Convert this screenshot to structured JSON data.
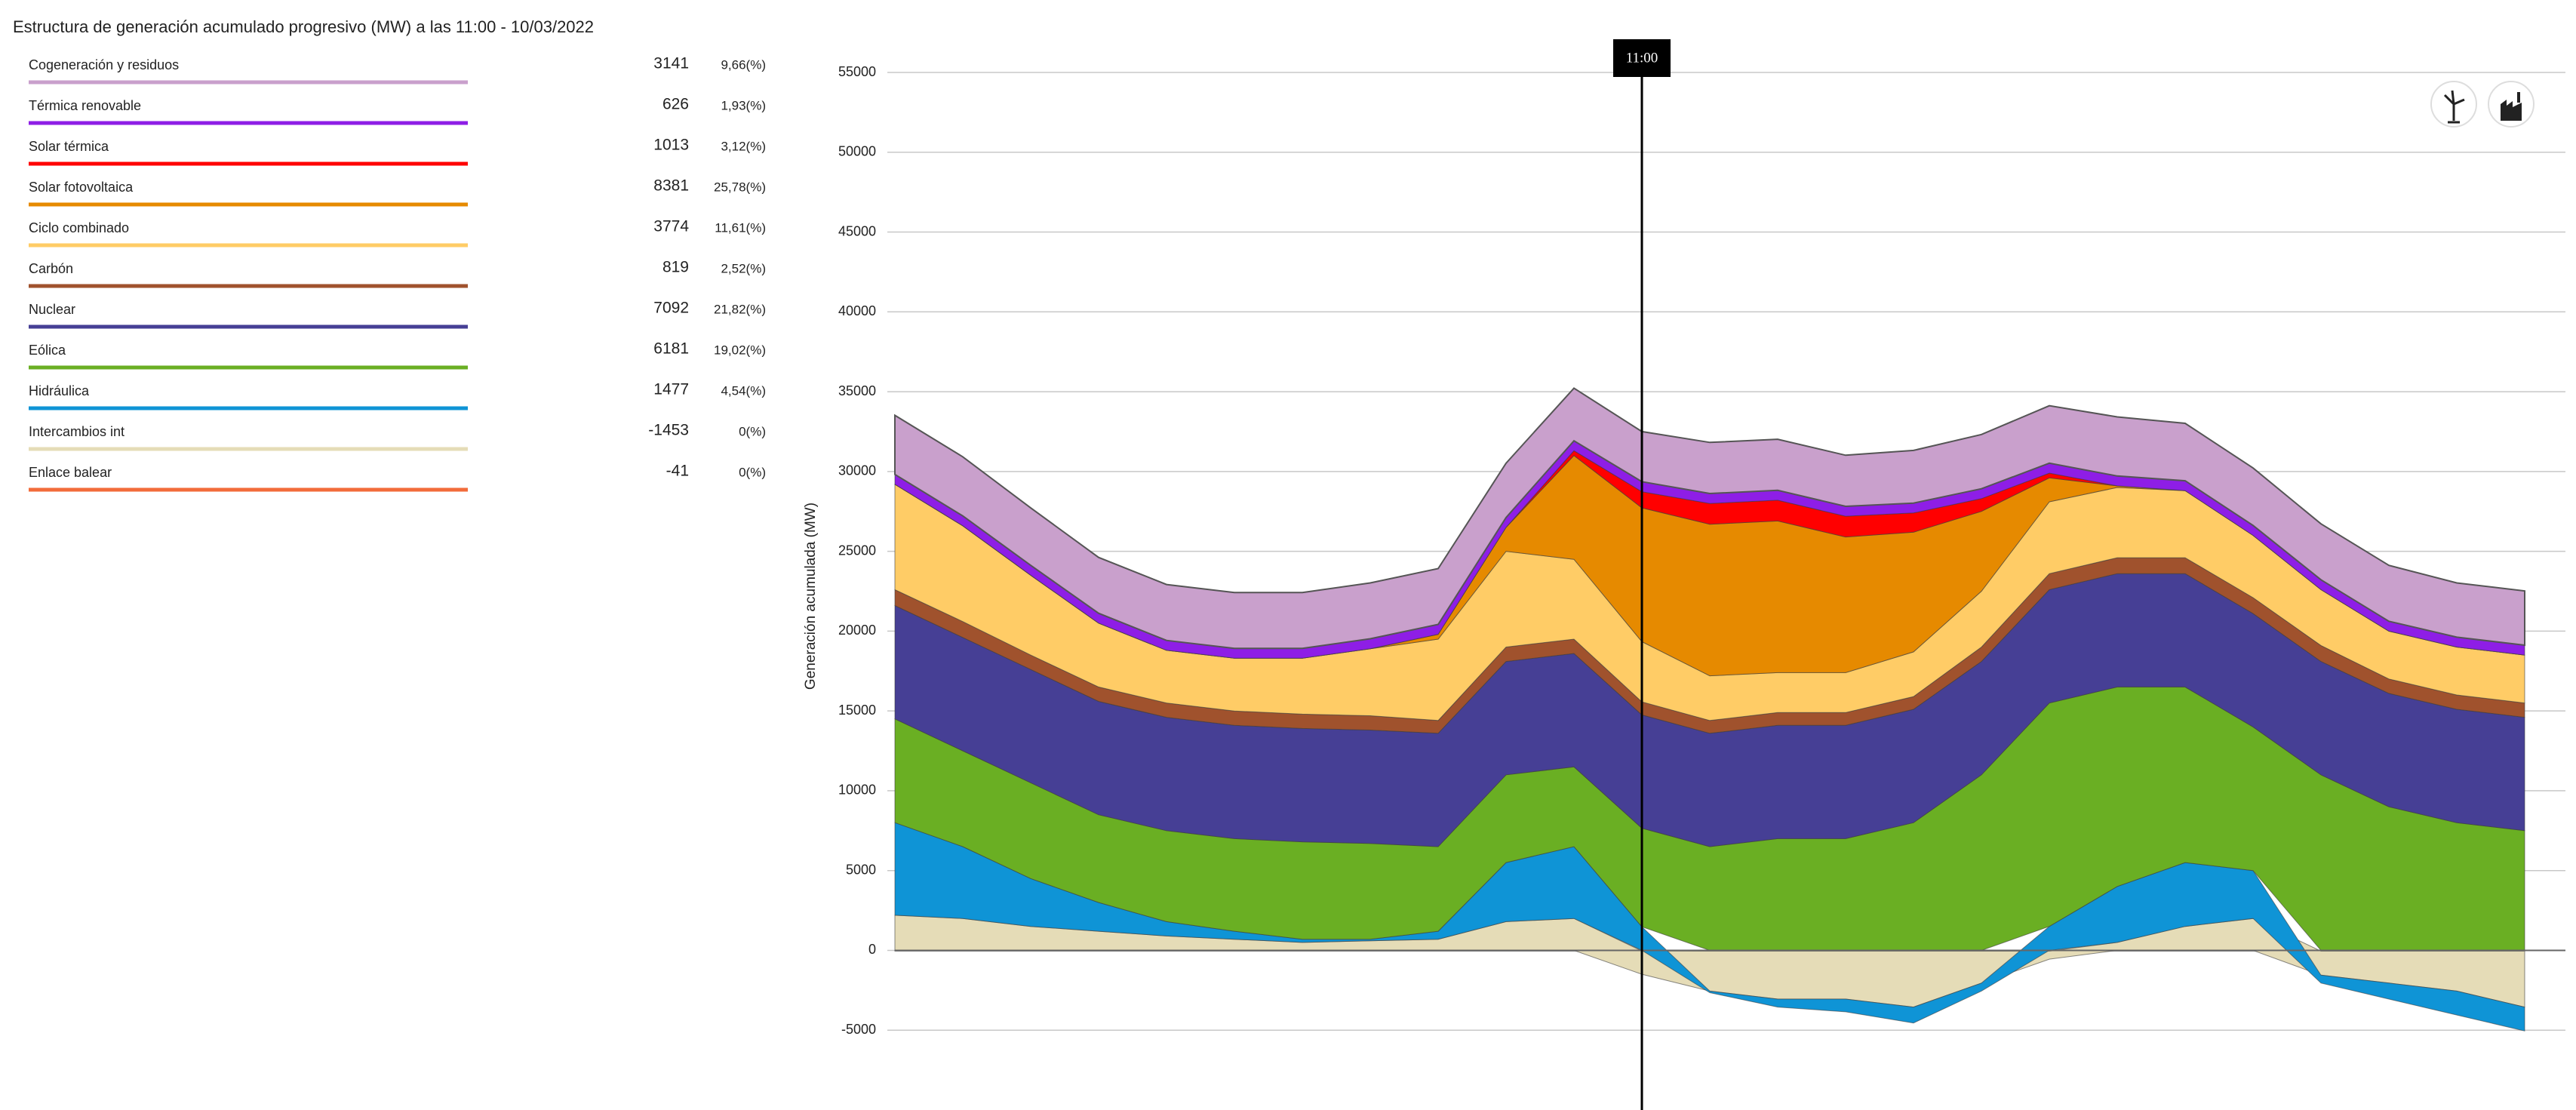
{
  "chart_data": {
    "type": "stacked-area",
    "title": "Estructura de generación acumulado progresivo (MW) a las 11:00 - 10/03/2022",
    "y_label": "Generación acumulada (MW)",
    "categories": [
      null,
      null,
      null,
      null,
      null,
      null,
      null,
      null,
      null,
      null,
      null,
      "11:00",
      null,
      null,
      null,
      null,
      null,
      null,
      null,
      null,
      null,
      null,
      null,
      null,
      null
    ],
    "ylim": [
      -10000,
      55000
    ],
    "yticks": [
      -5000,
      0,
      5000,
      10000,
      15000,
      20000,
      25000,
      30000,
      35000,
      40000,
      45000,
      50000,
      55000
    ],
    "grid": true,
    "series": [
      {
        "name": "Cogeneración y residuos",
        "color": "#c9a0cc",
        "current": 3141,
        "share": {
          "value": 9.66,
          "label": "9,66(%)"
        },
        "values": [
          3700,
          3700,
          3600,
          3500,
          3500,
          3500,
          3500,
          3500,
          3500,
          3400,
          3300,
          3141,
          3200,
          3200,
          3200,
          3300,
          3400,
          3600,
          3700,
          3600,
          3600,
          3500,
          3500,
          3400,
          3400
        ]
      },
      {
        "name": "Térmica renovable",
        "color": "#8e1ee6",
        "current": 626,
        "share": {
          "value": 1.93,
          "label": "1,93(%)"
        },
        "values": [
          620,
          620,
          620,
          620,
          620,
          620,
          620,
          620,
          620,
          620,
          620,
          626,
          620,
          620,
          620,
          620,
          620,
          620,
          620,
          620,
          620,
          620,
          620,
          620,
          620
        ]
      },
      {
        "name": "Solar térmica",
        "color": "#ff0000",
        "current": 1013,
        "share": {
          "value": 3.12,
          "label": "3,12(%)"
        },
        "values": [
          0,
          0,
          0,
          0,
          0,
          0,
          0,
          0,
          0,
          0,
          300,
          1013,
          1300,
          1300,
          1300,
          1200,
          800,
          300,
          0,
          0,
          0,
          0,
          0,
          0,
          0
        ]
      },
      {
        "name": "Solar fotovoltaica",
        "color": "#e68a00",
        "current": 8381,
        "share": {
          "value": 25.78,
          "label": "25,78(%)"
        },
        "values": [
          0,
          0,
          0,
          0,
          0,
          0,
          0,
          0,
          300,
          1500,
          6500,
          8381,
          9500,
          9500,
          8500,
          7500,
          5000,
          1500,
          100,
          0,
          0,
          0,
          0,
          0,
          0
        ]
      },
      {
        "name": "Ciclo combinado",
        "color": "#ffcc66",
        "current": 3774,
        "share": {
          "value": 11.61,
          "label": "11,61(%)"
        },
        "values": [
          6600,
          6000,
          5000,
          4000,
          3300,
          3300,
          3500,
          4200,
          5100,
          6000,
          5000,
          3774,
          2800,
          2500,
          2500,
          2800,
          3500,
          4500,
          4400,
          4200,
          3900,
          3500,
          3000,
          3000,
          3000
        ]
      },
      {
        "name": "Carbón",
        "color": "#a0522d",
        "current": 819,
        "share": {
          "value": 2.52,
          "label": "2,52(%)"
        },
        "values": [
          1000,
          1000,
          900,
          900,
          900,
          900,
          900,
          900,
          800,
          900,
          900,
          819,
          800,
          800,
          800,
          800,
          900,
          1000,
          1000,
          1000,
          1000,
          1000,
          900,
          900,
          900
        ]
      },
      {
        "name": "Nuclear",
        "color": "#463f95",
        "current": 7092,
        "share": {
          "value": 21.82,
          "label": "21,82(%)"
        },
        "values": [
          7100,
          7100,
          7100,
          7100,
          7100,
          7100,
          7100,
          7100,
          7100,
          7100,
          7100,
          7092,
          7100,
          7100,
          7100,
          7100,
          7100,
          7100,
          7100,
          7100,
          7100,
          7100,
          7100,
          7100,
          7100
        ]
      },
      {
        "name": "Eólica",
        "color": "#6aaf23",
        "current": 6181,
        "share": {
          "value": 19.02,
          "label": "19,02(%)"
        },
        "values": [
          6500,
          6000,
          6000,
          5500,
          5700,
          5800,
          6100,
          6000,
          5300,
          5500,
          5000,
          6181,
          6500,
          7000,
          7000,
          8000,
          11000,
          14000,
          12500,
          11000,
          9000,
          11000,
          9000,
          8000,
          7500
        ]
      },
      {
        "name": "Hidráulica",
        "color": "#0f94d6",
        "current": 1477,
        "share": {
          "value": 4.54,
          "label": "4,54(%)"
        },
        "values": [
          5800,
          4500,
          3000,
          1800,
          900,
          500,
          200,
          100,
          500,
          3700,
          4500,
          1477,
          -100,
          -500,
          -800,
          -1000,
          -500,
          1500,
          3500,
          4000,
          3000,
          -500,
          -1000,
          -1500,
          -1500
        ]
      },
      {
        "name": "Intercambios int",
        "color": "#e5dcb7",
        "current": -1453,
        "share": {
          "value": 0,
          "label": "0(%)"
        },
        "values": [
          2200,
          2000,
          1500,
          1200,
          900,
          700,
          500,
          600,
          700,
          1800,
          2000,
          -1453,
          -2500,
          -3000,
          -3000,
          -3500,
          -2000,
          -500,
          500,
          1500,
          2000,
          -1500,
          -2000,
          -2500,
          -3500
        ]
      },
      {
        "name": "Enlace balear",
        "color": "#f26b3a",
        "current": -41,
        "share": {
          "value": 0,
          "label": "0(%)"
        },
        "values": [
          -50,
          -50,
          -50,
          -50,
          -50,
          -50,
          -50,
          -50,
          -50,
          -50,
          -50,
          -41,
          -50,
          -50,
          -50,
          -50,
          -50,
          -50,
          -50,
          -50,
          -50,
          -50,
          -50,
          -50,
          -50
        ]
      }
    ]
  }
}
